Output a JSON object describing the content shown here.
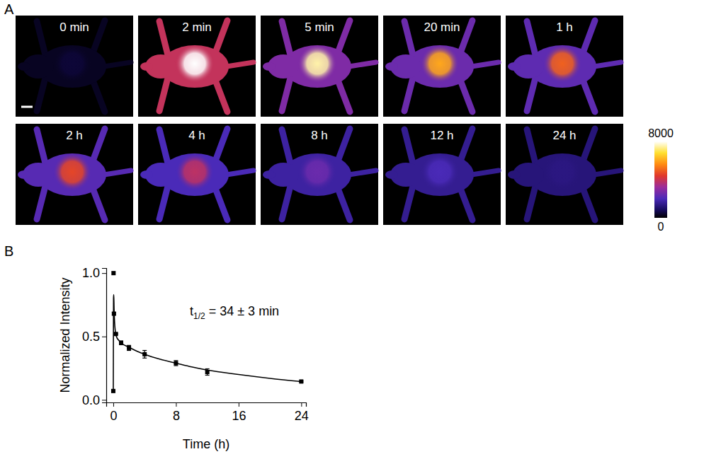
{
  "chart_data": [
    {
      "type": "image_grid",
      "panel_label": "A",
      "frames": [
        {
          "label": "0 min",
          "peak": 500,
          "body": 300
        },
        {
          "label": "2 min",
          "peak": 8000,
          "body": 3900
        },
        {
          "label": "5 min",
          "peak": 7500,
          "body": 2800
        },
        {
          "label": "20 min",
          "peak": 6000,
          "body": 2500
        },
        {
          "label": "1 h",
          "peak": 5000,
          "body": 2300
        },
        {
          "label": "2 h",
          "peak": 4600,
          "body": 2200
        },
        {
          "label": "4 h",
          "peak": 3800,
          "body": 2000
        },
        {
          "label": "8 h",
          "peak": 2500,
          "body": 1700
        },
        {
          "label": "12 h",
          "peak": 2000,
          "body": 1500
        },
        {
          "label": "24 h",
          "peak": 1300,
          "body": 1200
        }
      ],
      "colorbar": {
        "range": [
          0,
          8000
        ],
        "ticks": [
          0,
          8000
        ]
      }
    },
    {
      "type": "line",
      "panel_label": "B",
      "x_label": "Time (h)",
      "y_label": "Normalized Intensity",
      "annotation": {
        "main": "t",
        "sub": "1/2",
        "rest": " = 34 ± 3 min"
      },
      "xlim": [
        -0.9,
        24.6
      ],
      "xticks": [
        0,
        8,
        16,
        24
      ],
      "ylim": [
        -0.02,
        1.04
      ],
      "yticks": [
        {
          "value": 0,
          "label": "0.0"
        },
        {
          "value": 0.5,
          "label": "0.5"
        },
        {
          "value": 1,
          "label": "1.0"
        }
      ],
      "grid": false,
      "series": [
        {
          "type": "scatter",
          "marker": "square",
          "line_style": "none",
          "color": "#000000",
          "x": [
            0,
            0.033,
            0.083,
            0.333,
            1,
            2,
            4,
            8,
            12,
            24
          ],
          "values": [
            0.07,
            1.0,
            0.68,
            0.52,
            0.45,
            0.41,
            0.36,
            0.29,
            0.22,
            0.145
          ],
          "errors": [
            0,
            0,
            0.01,
            0.005,
            0.015,
            0.02,
            0.03,
            0.02,
            0.025,
            0.005
          ]
        },
        {
          "type": "line",
          "marker": "none",
          "line_style": "solid",
          "color": "#000000",
          "x": [
            0,
            0.03,
            0.06,
            0.1,
            0.2,
            0.4,
            0.7,
            1,
            2,
            3,
            4,
            6,
            8,
            10,
            12,
            16,
            20,
            24
          ],
          "values": [
            0.07,
            0.8,
            0.83,
            0.72,
            0.58,
            0.5,
            0.47,
            0.45,
            0.415,
            0.385,
            0.36,
            0.32,
            0.29,
            0.26,
            0.235,
            0.2,
            0.17,
            0.145
          ]
        }
      ]
    }
  ]
}
